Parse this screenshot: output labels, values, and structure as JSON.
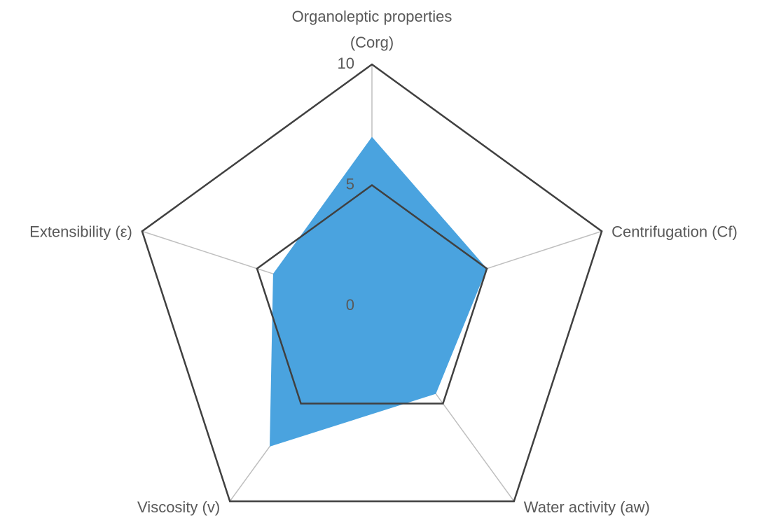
{
  "chart_data": {
    "type": "radar",
    "categories": [
      "Organoleptic properties\n(Corg)",
      "Centrifugation (Cf)",
      "Water activity (aw)",
      "Viscosity (v)",
      "Extensibility (ε)"
    ],
    "series": [
      {
        "name": null,
        "color": "#4aa3df",
        "values": [
          7,
          5,
          4.5,
          7.2,
          4.3
        ]
      }
    ],
    "ylim": [
      0,
      10
    ],
    "yticks": [
      0,
      5,
      10
    ],
    "grid": true
  }
}
